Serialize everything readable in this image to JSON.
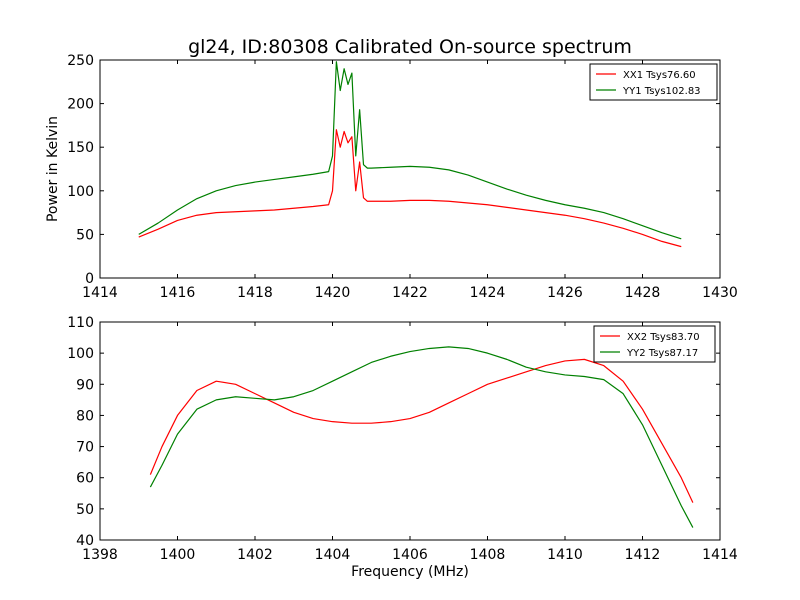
{
  "figure": {
    "title": "gl24, ID:80308 Calibrated On-source spectrum"
  },
  "chart_data": [
    {
      "type": "line",
      "ylabel": "Power in Kelvin",
      "xlabel": "",
      "xlim": [
        1414,
        1430
      ],
      "ylim": [
        0,
        250
      ],
      "xticks": [
        1414,
        1416,
        1418,
        1420,
        1422,
        1424,
        1426,
        1428,
        1430
      ],
      "yticks": [
        0,
        50,
        100,
        150,
        200,
        250
      ],
      "grid": false,
      "legend_position": "top-right",
      "series": [
        {
          "name": "XX1 Tsys76.60",
          "color": "#ff0000",
          "x": [
            1415.0,
            1415.5,
            1416.0,
            1416.5,
            1417.0,
            1417.5,
            1418.0,
            1418.5,
            1419.0,
            1419.5,
            1419.9,
            1420.0,
            1420.1,
            1420.2,
            1420.3,
            1420.4,
            1420.5,
            1420.6,
            1420.7,
            1420.8,
            1420.9,
            1421.0,
            1421.5,
            1422.0,
            1422.5,
            1423.0,
            1423.5,
            1424.0,
            1424.5,
            1425.0,
            1425.5,
            1426.0,
            1426.5,
            1427.0,
            1427.5,
            1428.0,
            1428.5,
            1429.0
          ],
          "values": [
            47,
            56,
            66,
            72,
            75,
            76,
            77,
            78,
            80,
            82,
            84,
            100,
            170,
            150,
            168,
            155,
            162,
            100,
            133,
            92,
            88,
            88,
            88,
            89,
            89,
            88,
            86,
            84,
            81,
            78,
            75,
            72,
            68,
            63,
            57,
            50,
            42,
            36
          ]
        },
        {
          "name": "YY1 Tsys102.83",
          "color": "#008000",
          "x": [
            1415.0,
            1415.5,
            1416.0,
            1416.5,
            1417.0,
            1417.5,
            1418.0,
            1418.5,
            1419.0,
            1419.5,
            1419.9,
            1420.0,
            1420.1,
            1420.2,
            1420.3,
            1420.4,
            1420.5,
            1420.6,
            1420.7,
            1420.8,
            1420.9,
            1421.0,
            1421.5,
            1422.0,
            1422.5,
            1423.0,
            1423.5,
            1424.0,
            1424.5,
            1425.0,
            1425.5,
            1426.0,
            1426.5,
            1427.0,
            1427.5,
            1428.0,
            1428.5,
            1429.0
          ],
          "values": [
            50,
            63,
            78,
            91,
            100,
            106,
            110,
            113,
            116,
            119,
            122,
            140,
            248,
            215,
            240,
            222,
            235,
            140,
            193,
            130,
            126,
            126,
            127,
            128,
            127,
            124,
            118,
            110,
            102,
            95,
            89,
            84,
            80,
            75,
            68,
            60,
            52,
            45
          ]
        }
      ]
    },
    {
      "type": "line",
      "xlabel": "Frequency (MHz)",
      "ylabel": "",
      "xlim": [
        1398,
        1414
      ],
      "ylim": [
        40,
        110
      ],
      "xticks": [
        1398,
        1400,
        1402,
        1404,
        1406,
        1408,
        1410,
        1412,
        1414
      ],
      "yticks": [
        40,
        50,
        60,
        70,
        80,
        90,
        100,
        110
      ],
      "grid": false,
      "legend_position": "top-right",
      "series": [
        {
          "name": "XX2 Tsys83.70",
          "color": "#ff0000",
          "x": [
            1399.3,
            1399.6,
            1400.0,
            1400.5,
            1401.0,
            1401.5,
            1402.0,
            1402.5,
            1403.0,
            1403.5,
            1404.0,
            1404.5,
            1405.0,
            1405.5,
            1406.0,
            1406.5,
            1407.0,
            1407.5,
            1408.0,
            1408.5,
            1409.0,
            1409.5,
            1410.0,
            1410.5,
            1411.0,
            1411.5,
            1412.0,
            1412.5,
            1413.0,
            1413.3
          ],
          "values": [
            61,
            70,
            80,
            88,
            91,
            90,
            87,
            84,
            81,
            79,
            78,
            77.5,
            77.5,
            78,
            79,
            81,
            84,
            87,
            90,
            92,
            94,
            96,
            97.5,
            98,
            96,
            91,
            82,
            71,
            60,
            52
          ]
        },
        {
          "name": "YY2 Tsys87.17",
          "color": "#008000",
          "x": [
            1399.3,
            1399.6,
            1400.0,
            1400.5,
            1401.0,
            1401.5,
            1402.0,
            1402.5,
            1403.0,
            1403.5,
            1404.0,
            1404.5,
            1405.0,
            1405.5,
            1406.0,
            1406.5,
            1407.0,
            1407.5,
            1408.0,
            1408.5,
            1409.0,
            1409.5,
            1410.0,
            1410.5,
            1411.0,
            1411.5,
            1412.0,
            1412.5,
            1413.0,
            1413.3
          ],
          "values": [
            57,
            64,
            74,
            82,
            85,
            86,
            85.5,
            85,
            86,
            88,
            91,
            94,
            97,
            99,
            100.5,
            101.5,
            102,
            101.5,
            100,
            98,
            95.5,
            94,
            93,
            92.5,
            91.5,
            87,
            77,
            64,
            51,
            44
          ]
        }
      ]
    }
  ]
}
